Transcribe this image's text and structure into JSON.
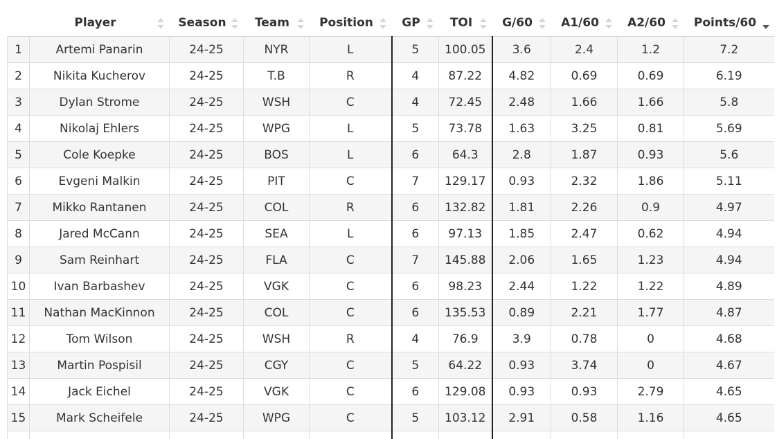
{
  "table": {
    "columns": [
      {
        "key": "rank",
        "label": ""
      },
      {
        "key": "player",
        "label": "Player"
      },
      {
        "key": "season",
        "label": "Season"
      },
      {
        "key": "team",
        "label": "Team"
      },
      {
        "key": "position",
        "label": "Position"
      },
      {
        "key": "gp",
        "label": "GP"
      },
      {
        "key": "toi",
        "label": "TOI"
      },
      {
        "key": "g60",
        "label": "G/60"
      },
      {
        "key": "a160",
        "label": "A1/60"
      },
      {
        "key": "a260",
        "label": "A2/60"
      },
      {
        "key": "pts60",
        "label": "Points/60"
      }
    ],
    "sort": {
      "column": "Points/60",
      "direction": "descending"
    },
    "rows": [
      [
        "1",
        "Artemi Panarin",
        "24-25",
        "NYR",
        "L",
        "5",
        "100.05",
        "3.6",
        "2.4",
        "1.2",
        "7.2"
      ],
      [
        "2",
        "Nikita Kucherov",
        "24-25",
        "T.B",
        "R",
        "4",
        "87.22",
        "4.82",
        "0.69",
        "0.69",
        "6.19"
      ],
      [
        "3",
        "Dylan Strome",
        "24-25",
        "WSH",
        "C",
        "4",
        "72.45",
        "2.48",
        "1.66",
        "1.66",
        "5.8"
      ],
      [
        "4",
        "Nikolaj Ehlers",
        "24-25",
        "WPG",
        "L",
        "5",
        "73.78",
        "1.63",
        "3.25",
        "0.81",
        "5.69"
      ],
      [
        "5",
        "Cole Koepke",
        "24-25",
        "BOS",
        "L",
        "6",
        "64.3",
        "2.8",
        "1.87",
        "0.93",
        "5.6"
      ],
      [
        "6",
        "Evgeni Malkin",
        "24-25",
        "PIT",
        "C",
        "7",
        "129.17",
        "0.93",
        "2.32",
        "1.86",
        "5.11"
      ],
      [
        "7",
        "Mikko Rantanen",
        "24-25",
        "COL",
        "R",
        "6",
        "132.82",
        "1.81",
        "2.26",
        "0.9",
        "4.97"
      ],
      [
        "8",
        "Jared McCann",
        "24-25",
        "SEA",
        "L",
        "6",
        "97.13",
        "1.85",
        "2.47",
        "0.62",
        "4.94"
      ],
      [
        "9",
        "Sam Reinhart",
        "24-25",
        "FLA",
        "C",
        "7",
        "145.88",
        "2.06",
        "1.65",
        "1.23",
        "4.94"
      ],
      [
        "10",
        "Ivan Barbashev",
        "24-25",
        "VGK",
        "C",
        "6",
        "98.23",
        "2.44",
        "1.22",
        "1.22",
        "4.89"
      ],
      [
        "11",
        "Nathan MacKinnon",
        "24-25",
        "COL",
        "C",
        "6",
        "135.53",
        "0.89",
        "2.21",
        "1.77",
        "4.87"
      ],
      [
        "12",
        "Tom Wilson",
        "24-25",
        "WSH",
        "R",
        "4",
        "76.9",
        "3.9",
        "0.78",
        "0",
        "4.68"
      ],
      [
        "13",
        "Martin Pospisil",
        "24-25",
        "CGY",
        "C",
        "5",
        "64.22",
        "0.93",
        "3.74",
        "0",
        "4.67"
      ],
      [
        "14",
        "Jack Eichel",
        "24-25",
        "VGK",
        "C",
        "6",
        "129.08",
        "0.93",
        "0.93",
        "2.79",
        "4.65"
      ],
      [
        "15",
        "Mark Scheifele",
        "24-25",
        "WPG",
        "C",
        "5",
        "103.12",
        "2.91",
        "0.58",
        "1.16",
        "4.65"
      ]
    ]
  }
}
